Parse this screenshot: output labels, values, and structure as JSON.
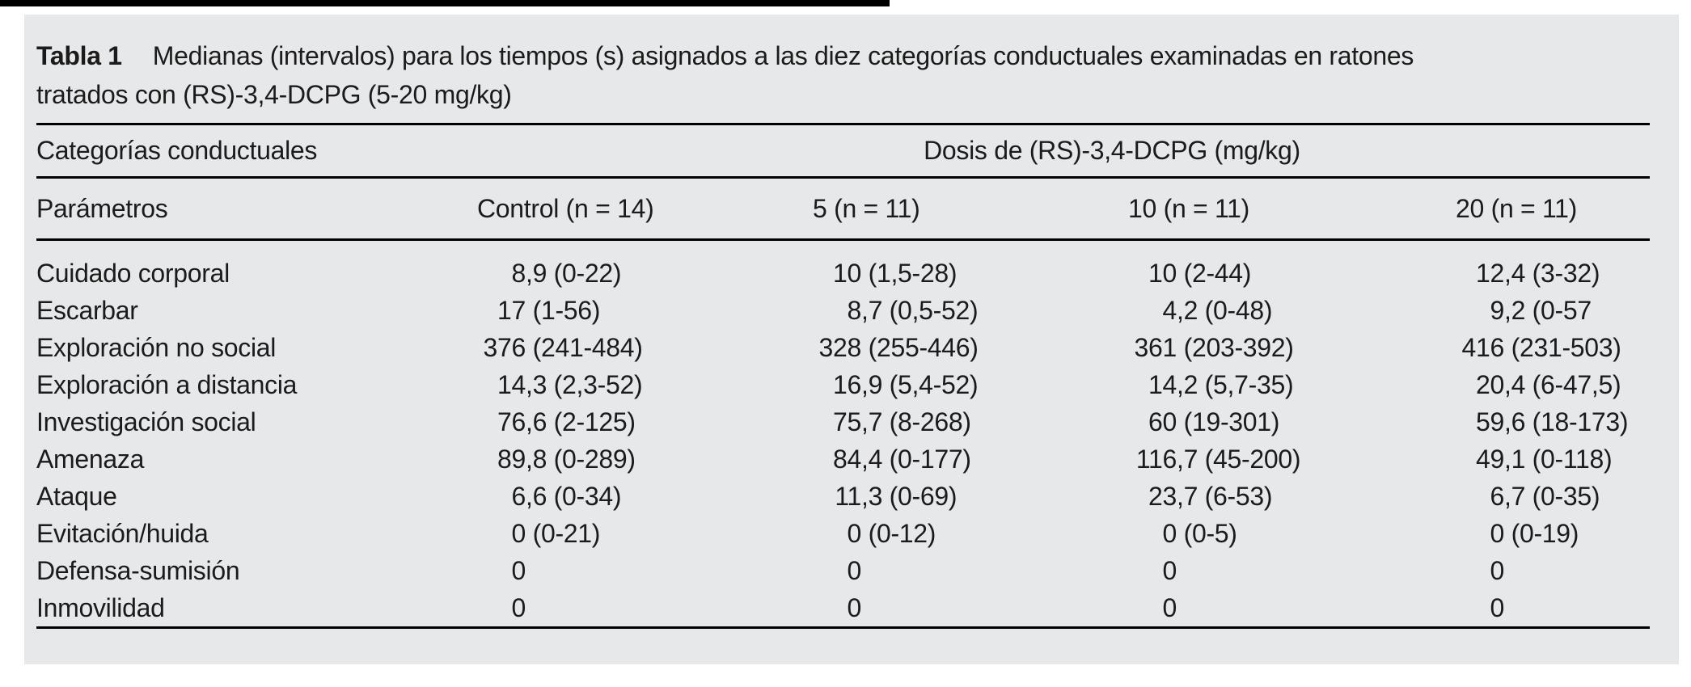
{
  "colors": {
    "page_bg": "#ffffff",
    "panel_bg": "#e7e8ea",
    "text": "#1b1b1b",
    "rule": "#000000",
    "top_bar": "#000000"
  },
  "table": {
    "label": "Tabla 1",
    "caption_lines": [
      "Medianas (intervalos) para los tiempos (s) asignados a las diez categorías conductuales examinadas en ratones",
      "tratados con (RS)-3,4-DCPG (5-20 mg/kg)"
    ],
    "group_header": {
      "categories": "Categorías conductuales",
      "dose": "Dosis de (RS)-3,4-DCPG (mg/kg)"
    },
    "columns": [
      "Parámetros",
      "Control (n = 14)",
      "5 (n = 11)",
      "10 (n = 11)",
      "20 (n = 11)"
    ],
    "rows": [
      {
        "label": "Cuidado corporal",
        "cells": [
          "8,9 (0-22)",
          "10 (1,5-28)",
          "10 (2-44)",
          "12,4 (3-32)"
        ]
      },
      {
        "label": "Escarbar",
        "cells": [
          "17 (1-56)",
          "8,7 (0,5-52)",
          "4,2 (0-48)",
          "9,2 (0-57"
        ]
      },
      {
        "label": "Exploración no social",
        "cells": [
          "376 (241-484)",
          "328 (255-446)",
          "361 (203-392)",
          "416 (231-503)"
        ]
      },
      {
        "label": "Exploración a distancia",
        "cells": [
          "14,3 (2,3-52)",
          "16,9 (5,4-52)",
          "14,2 (5,7-35)",
          "20,4 (6-47,5)"
        ]
      },
      {
        "label": "Investigación social",
        "cells": [
          "76,6 (2-125)",
          "75,7 (8-268)",
          "60 (19-301)",
          "59,6 (18-173)"
        ]
      },
      {
        "label": "Amenaza",
        "cells": [
          "89,8 (0-289)",
          "84,4 (0-177)",
          "116,7 (45-200)",
          "49,1 (0-118)"
        ]
      },
      {
        "label": "Ataque",
        "cells": [
          "6,6 (0-34)",
          "11,3 (0-69)",
          "23,7 (6-53)",
          "6,7 (0-35)"
        ]
      },
      {
        "label": "Evitación/huida",
        "cells": [
          "0 (0-21)",
          "0 (0-12)",
          "0 (0-5)",
          "0 (0-19)"
        ]
      },
      {
        "label": "Defensa-sumisión",
        "cells": [
          "0",
          "0",
          "0",
          "0"
        ]
      },
      {
        "label": "Inmovilidad",
        "cells": [
          "0",
          "0",
          "0",
          "0"
        ]
      }
    ]
  }
}
